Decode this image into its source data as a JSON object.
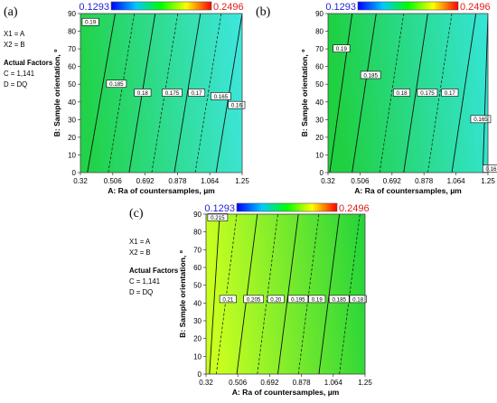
{
  "color_scale": {
    "low": "0.1293",
    "high": "0.2496",
    "low_color": "#1f1fd6",
    "high_color": "#e01b1b",
    "stops": [
      "#0000ff",
      "#00c8ff",
      "#00ff00",
      "#ffff00",
      "#ff0000"
    ]
  },
  "chart_data": [
    {
      "type": "contour",
      "panel": "(a)",
      "xlabel": "A: Ra of countersamples, µm",
      "ylabel": "B: Sample orientation, º",
      "x_ticks": [
        "0.32",
        "0.506",
        "0.692",
        "0.878",
        "1.064",
        "1.25"
      ],
      "y_ticks": [
        "0",
        "10",
        "20",
        "30",
        "40",
        "50",
        "60",
        "70",
        "80",
        "90"
      ],
      "xlim": [
        0.32,
        1.25
      ],
      "ylim": [
        0,
        90
      ],
      "factors_info": [
        "X1 = A",
        "X2 = B"
      ],
      "actual_factors_title": "Actual Factors",
      "actual_factors": [
        "C = 1,141",
        "D = DQ"
      ],
      "corner_colors": {
        "left": "#22d34a",
        "right": "#3ee6e0"
      },
      "contours": [
        {
          "label": "0.19",
          "style": "solid",
          "x_bottom": 0.36,
          "x_top": 0.52,
          "label_x": 0.33,
          "label_y": 85
        },
        {
          "label": "0.185",
          "style": "dashed",
          "x_bottom": 0.48,
          "x_top": 0.63,
          "label_x": 0.47,
          "label_y": 50
        },
        {
          "label": "0.18",
          "style": "solid",
          "x_bottom": 0.6,
          "x_top": 0.75,
          "label_x": 0.63,
          "label_y": 45
        },
        {
          "label": "0.175",
          "style": "dashed",
          "x_bottom": 0.73,
          "x_top": 0.88,
          "label_x": 0.79,
          "label_y": 45
        },
        {
          "label": "0.17",
          "style": "solid",
          "x_bottom": 0.86,
          "x_top": 1.01,
          "label_x": 0.94,
          "label_y": 45
        },
        {
          "label": "0.165",
          "style": "dashed",
          "x_bottom": 0.98,
          "x_top": 1.13,
          "label_x": 1.07,
          "label_y": 43
        },
        {
          "label": "0.16",
          "style": "solid",
          "x_bottom": 1.1,
          "x_top": 1.25,
          "label_x": 1.17,
          "label_y": 38
        }
      ]
    },
    {
      "type": "contour",
      "panel": "(b)",
      "xlabel": "A: Ra of countersamples, µm",
      "ylabel": "B: Sample orientation, º",
      "x_ticks": [
        "0.32",
        "0.506",
        "0.692",
        "0.878",
        "1.064",
        "1.25"
      ],
      "y_ticks": [
        "0",
        "10",
        "20",
        "30",
        "40",
        "50",
        "60",
        "70",
        "80",
        "90"
      ],
      "xlim": [
        0.32,
        1.25
      ],
      "ylim": [
        0,
        90
      ],
      "corner_colors": {
        "left": "#1fd040",
        "right": "#35e5d8"
      },
      "contours": [
        {
          "label": "0.19",
          "style": "solid",
          "x_bottom": 0.33,
          "x_top": 0.46,
          "label_x": 0.35,
          "label_y": 70
        },
        {
          "label": "0.185",
          "style": "solid",
          "x_bottom": 0.46,
          "x_top": 0.6,
          "label_x": 0.51,
          "label_y": 55
        },
        {
          "label": "0.18",
          "style": "dashed",
          "x_bottom": 0.62,
          "x_top": 0.76,
          "label_x": 0.7,
          "label_y": 45
        },
        {
          "label": "0.175",
          "style": "solid",
          "x_bottom": 0.76,
          "x_top": 0.9,
          "label_x": 0.84,
          "label_y": 45
        },
        {
          "label": "0.17",
          "style": "dashed",
          "x_bottom": 0.9,
          "x_top": 1.04,
          "label_x": 0.98,
          "label_y": 45
        },
        {
          "label": "0.165",
          "style": "solid",
          "x_bottom": 1.04,
          "x_top": 1.18,
          "label_x": 1.15,
          "label_y": 30
        },
        {
          "label": "0.16",
          "style": "solid",
          "x_bottom": 1.22,
          "x_top": 1.25,
          "label_x": 1.22,
          "label_y": 2
        }
      ]
    },
    {
      "type": "contour",
      "panel": "(c)",
      "xlabel": "A: Ra of countersamples, µm",
      "ylabel": "B: Sample orientation, º",
      "x_ticks": [
        "0.32",
        "0.506",
        "0.692",
        "0.878",
        "1.064",
        "1.25"
      ],
      "y_ticks": [
        "0",
        "10",
        "20",
        "30",
        "40",
        "50",
        "60",
        "70",
        "80",
        "90"
      ],
      "xlim": [
        0.32,
        1.25
      ],
      "ylim": [
        0,
        90
      ],
      "factors_info": [
        "X1 = A",
        "X2 = B"
      ],
      "actual_factors_title": "Actual Factors",
      "actual_factors": [
        "C = 1,141",
        "D = DQ"
      ],
      "corner_colors": {
        "left": "#c8ff20",
        "right": "#22d43a"
      },
      "contours": [
        {
          "label": "0.215",
          "style": "solid",
          "x_bottom": 0.34,
          "x_top": 0.4,
          "label_x": 0.33,
          "label_y": 88
        },
        {
          "label": "0.21",
          "style": "dashed",
          "x_bottom": 0.38,
          "x_top": 0.5,
          "label_x": 0.4,
          "label_y": 42
        },
        {
          "label": "0.205",
          "style": "solid",
          "x_bottom": 0.5,
          "x_top": 0.62,
          "label_x": 0.54,
          "label_y": 42
        },
        {
          "label": "0.20",
          "style": "dashed",
          "x_bottom": 0.62,
          "x_top": 0.74,
          "label_x": 0.68,
          "label_y": 42
        },
        {
          "label": "0.195",
          "style": "solid",
          "x_bottom": 0.74,
          "x_top": 0.86,
          "label_x": 0.8,
          "label_y": 42
        },
        {
          "label": "0.19",
          "style": "dashed",
          "x_bottom": 0.86,
          "x_top": 0.98,
          "label_x": 0.92,
          "label_y": 42
        },
        {
          "label": "0.185",
          "style": "solid",
          "x_bottom": 0.98,
          "x_top": 1.1,
          "label_x": 1.04,
          "label_y": 42
        },
        {
          "label": "0.18",
          "style": "dashed",
          "x_bottom": 1.1,
          "x_top": 1.22,
          "label_x": 1.16,
          "label_y": 42
        }
      ]
    }
  ]
}
